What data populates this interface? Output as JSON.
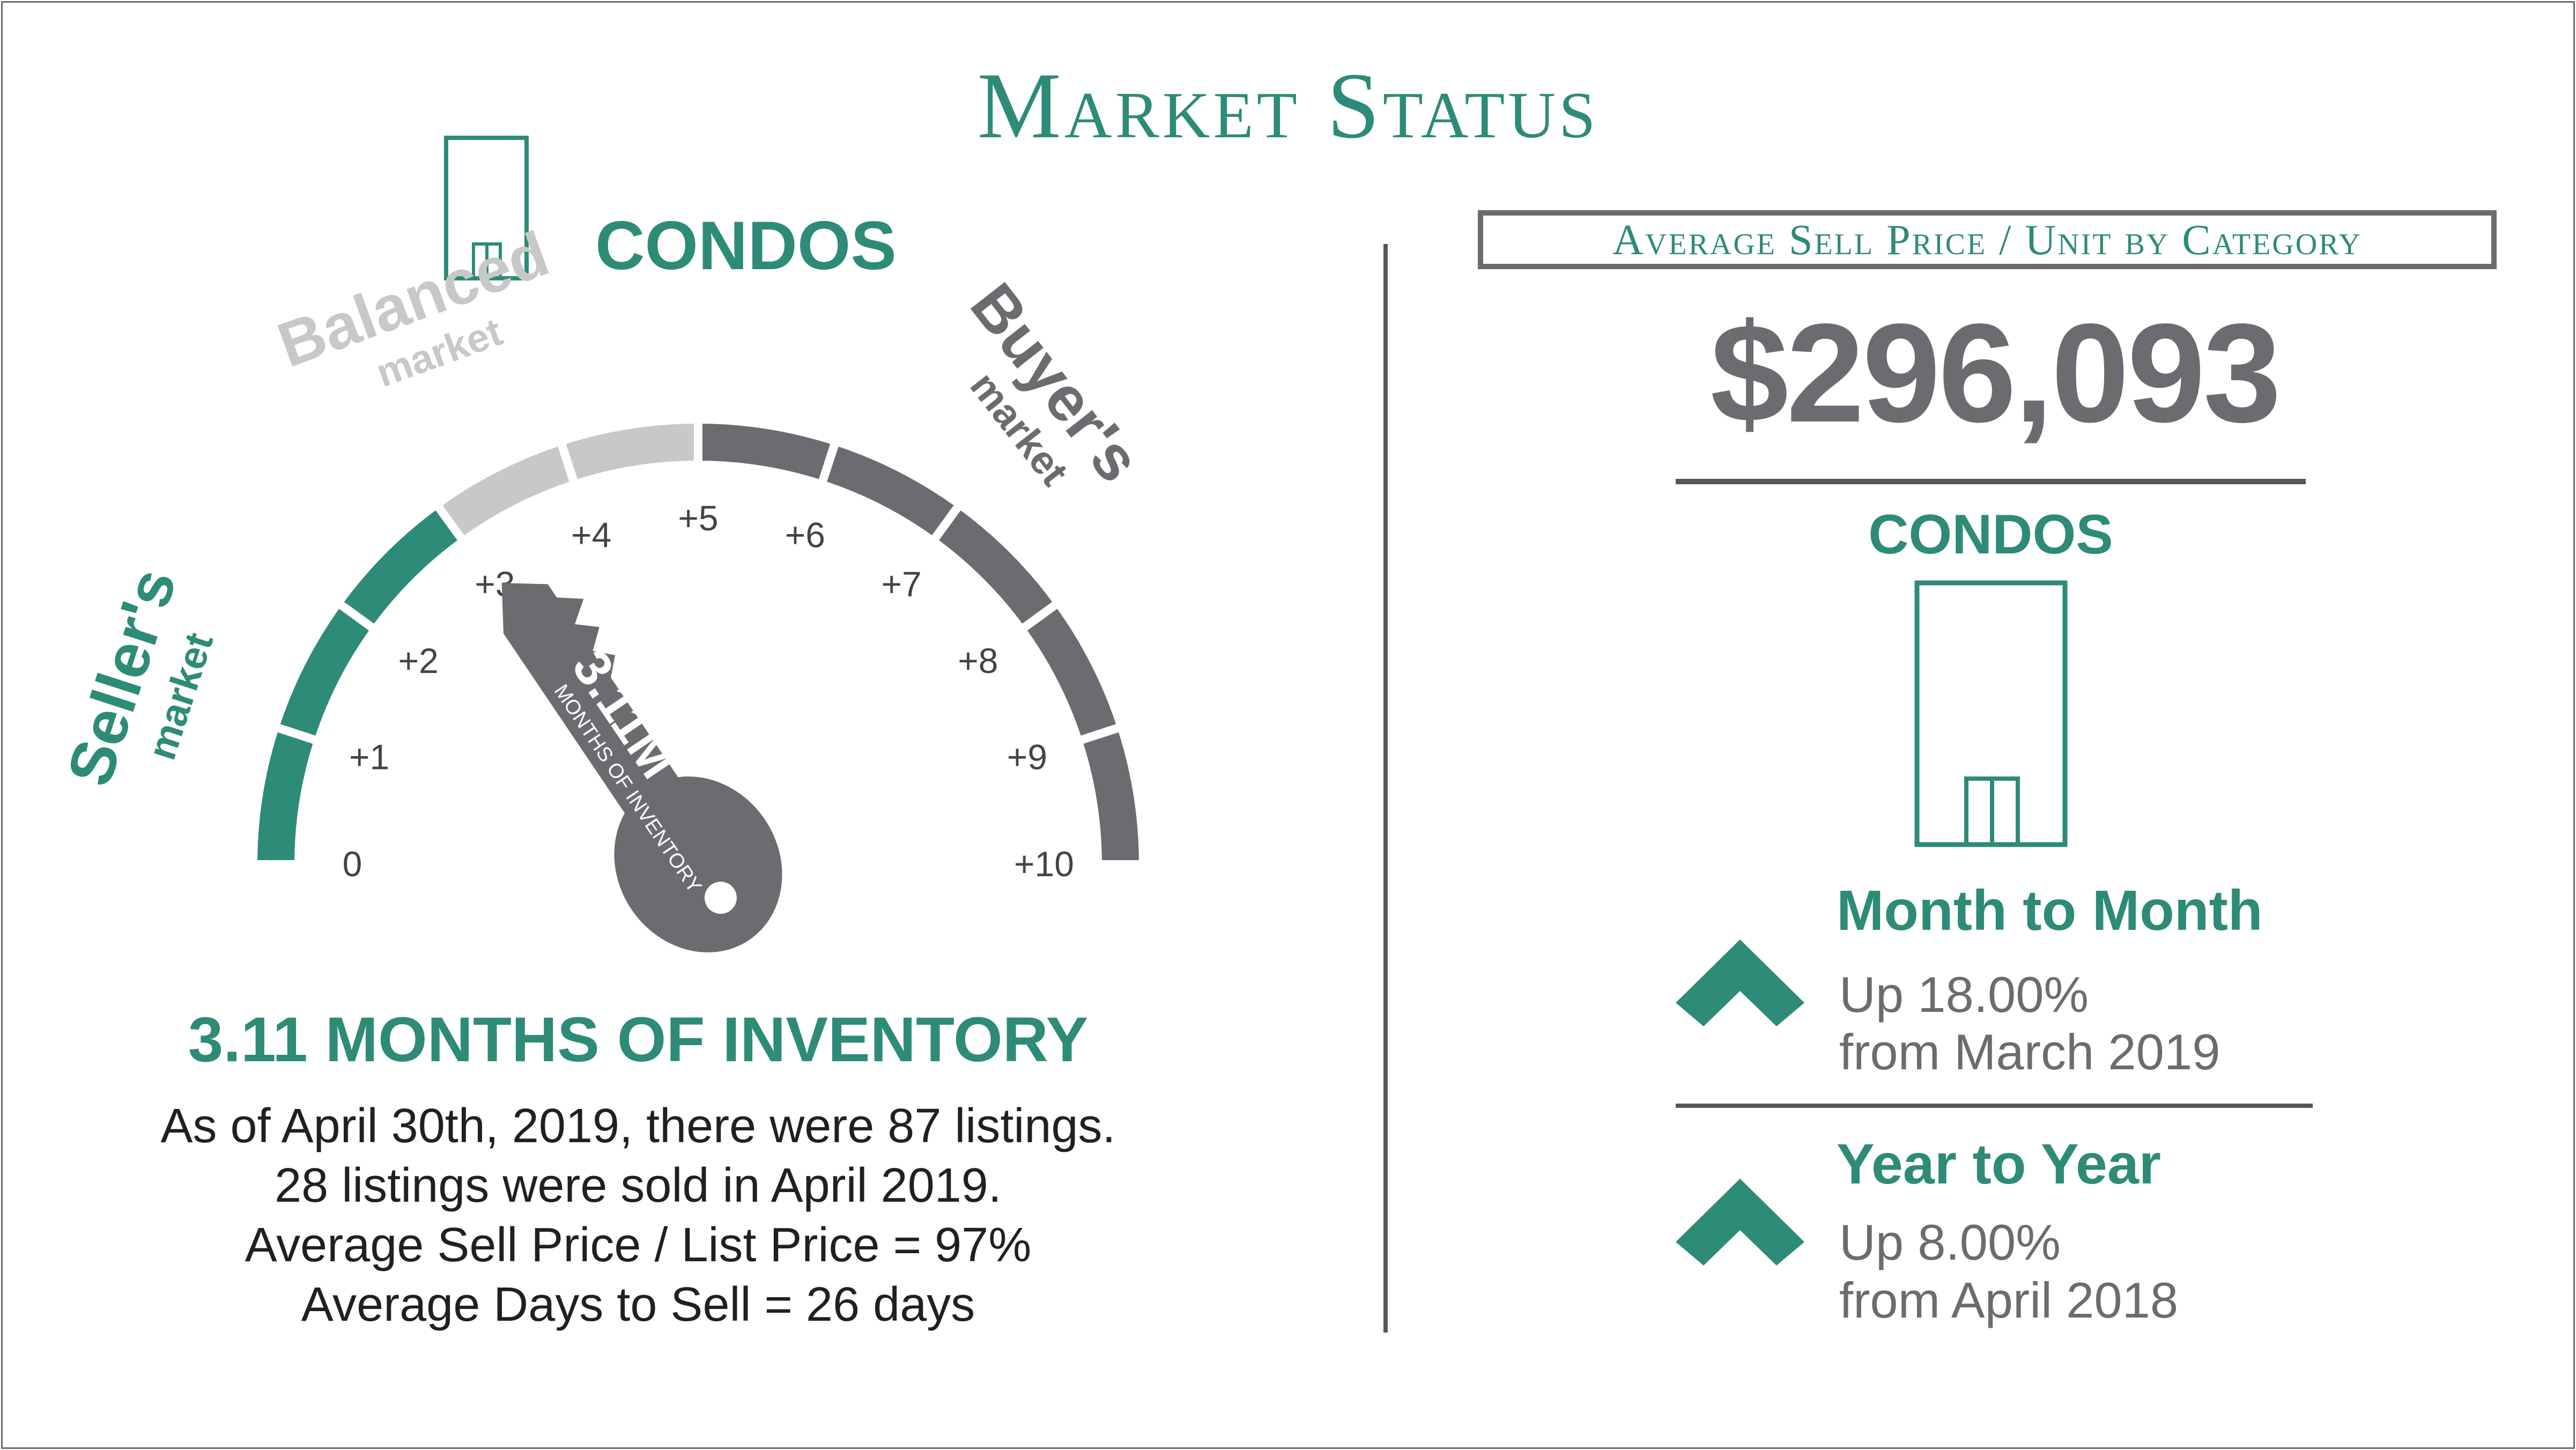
{
  "title": "Market Status",
  "left": {
    "category": "CONDOS",
    "gauge": {
      "value": 3.11,
      "min": 0,
      "max": 10,
      "ticks": [
        "0",
        "+1",
        "+2",
        "+3",
        "+4",
        "+5",
        "+6",
        "+7",
        "+8",
        "+9",
        "+10"
      ],
      "key_value_label": "3.11M",
      "key_sub_label": "MONTHS OF INVENTORY",
      "zones": {
        "sellers": {
          "title": "Seller's",
          "sub": "market",
          "color": "#2e8b77"
        },
        "balanced": {
          "title": "Balanced",
          "sub": "market",
          "color": "#c8c8c8"
        },
        "buyers": {
          "title": "Buyer's",
          "sub": "market",
          "color": "#6b6c70"
        }
      }
    },
    "headline": "3.11 MONTHS OF INVENTORY",
    "lines": [
      "As of April 30th, 2019, there were 87 listings.",
      "28 listings were sold in April 2019.",
      "Average Sell Price / List Price = 97%",
      "Average Days to Sell = 26 days"
    ]
  },
  "right": {
    "box_label": "Average Sell Price / Unit by Category",
    "price": "$296,093",
    "category": "CONDOS",
    "changes": [
      {
        "title": "Month to Month",
        "line1": "Up 18.00%",
        "line2": "from March 2019",
        "icon": "chevron-up-icon"
      },
      {
        "title": "Year to Year",
        "line1": "Up 8.00%",
        "line2": "from April 2018",
        "icon": "chevron-up-icon"
      }
    ]
  },
  "colors": {
    "teal": "#2e8b77",
    "grey": "#6b6c70",
    "light_grey": "#c8c8c8"
  }
}
